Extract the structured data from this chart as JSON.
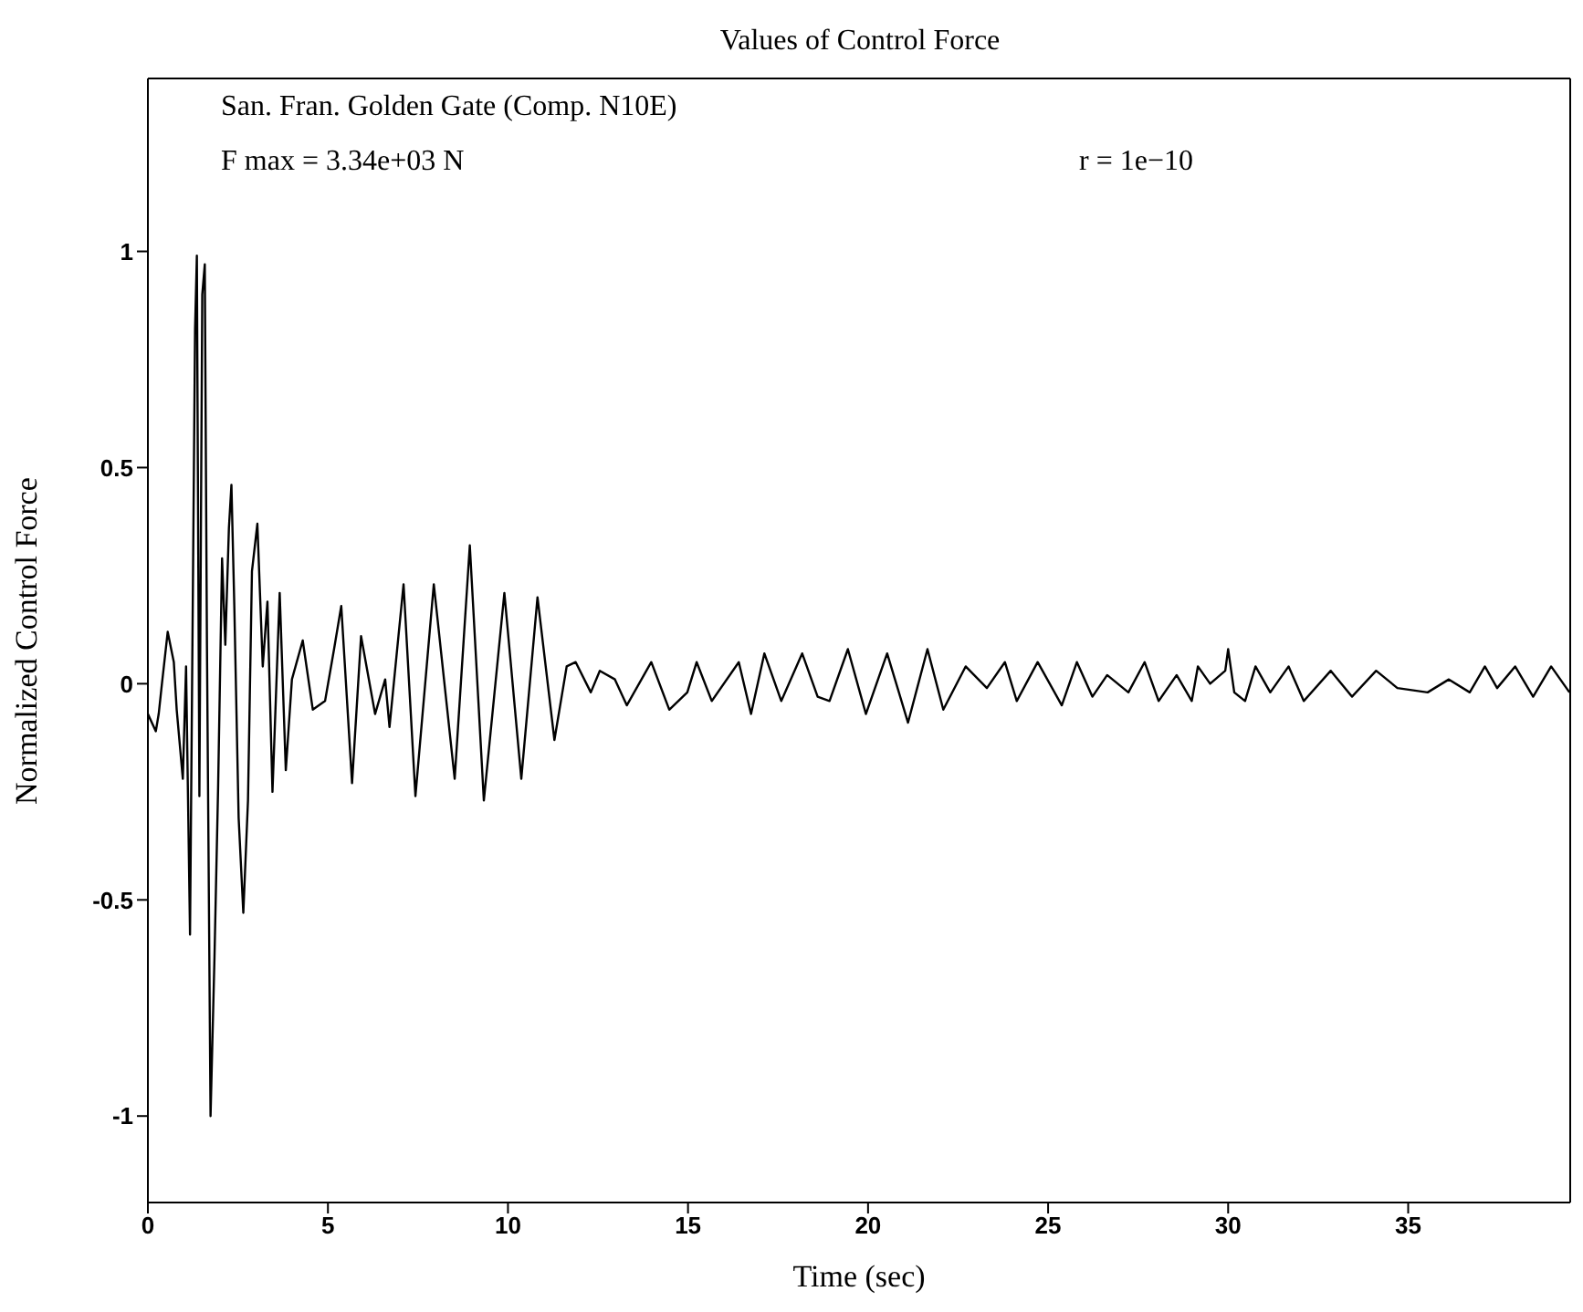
{
  "chart_data": {
    "type": "line",
    "title": "Values of Control Force",
    "xlabel": "Time (sec)",
    "ylabel": "Normalized Control Force",
    "annotations": [
      "San. Fran. Golden Gate (Comp. N10E)",
      "F max = 3.34e+03 N",
      "r = 1e−10"
    ],
    "xlim": [
      0,
      39.5
    ],
    "xticks": [
      0,
      5,
      10,
      15,
      20,
      25,
      30,
      35
    ],
    "ylim": [
      -1.2,
      1.4
    ],
    "yticks": [
      -1,
      -0.5,
      0,
      0.5,
      1
    ],
    "marker": "none",
    "line_style": "solid",
    "series": [
      {
        "color": "#000000",
        "x": [
          0,
          0.22,
          0.3,
          0.39,
          0.55,
          0.72,
          0.8,
          0.97,
          1.06,
          1.17,
          1.31,
          1.36,
          1.43,
          1.51,
          1.58,
          1.64,
          1.74,
          1.85,
          1.95,
          2.06,
          2.15,
          2.25,
          2.32,
          2.4,
          2.52,
          2.65,
          2.78,
          2.89,
          3.04,
          3.19,
          3.32,
          3.46,
          3.66,
          3.83,
          4.0,
          4.3,
          4.58,
          4.92,
          5.17,
          5.37,
          5.67,
          5.92,
          6.31,
          6.59,
          6.71,
          7.1,
          7.43,
          7.94,
          8.52,
          8.94,
          9.33,
          9.9,
          10.37,
          10.82,
          11.29,
          11.63,
          11.88,
          12.3,
          12.55,
          12.97,
          13.3,
          13.98,
          14.48,
          14.98,
          15.24,
          15.66,
          16.41,
          16.75,
          17.12,
          17.59,
          18.17,
          18.6,
          18.93,
          19.44,
          19.94,
          20.53,
          21.11,
          21.65,
          22.09,
          22.71,
          23.3,
          23.8,
          24.13,
          24.71,
          25.38,
          25.8,
          26.23,
          26.64,
          27.23,
          27.68,
          28.07,
          28.57,
          28.99,
          29.16,
          29.5,
          29.92,
          30.0,
          30.17,
          30.47,
          30.76,
          31.17,
          31.68,
          32.1,
          32.85,
          33.44,
          34.11,
          34.7,
          35.54,
          36.13,
          36.71,
          37.13,
          37.47,
          37.97,
          38.47,
          38.97,
          39.48
        ],
        "values": [
          -0.07,
          -0.11,
          -0.07,
          0,
          0.12,
          0.05,
          -0.06,
          -0.22,
          0.04,
          -0.58,
          0.82,
          0.99,
          -0.26,
          0.9,
          0.97,
          0.09,
          -1.0,
          -0.63,
          -0.24,
          0.29,
          0.09,
          0.36,
          0.46,
          0.18,
          -0.31,
          -0.53,
          -0.27,
          0.26,
          0.37,
          0.04,
          0.19,
          -0.25,
          0.21,
          -0.2,
          0.01,
          0.1,
          -0.06,
          -0.04,
          0.08,
          0.18,
          -0.23,
          0.11,
          -0.07,
          0.01,
          -0.1,
          0.23,
          -0.26,
          0.23,
          -0.22,
          0.32,
          -0.27,
          0.21,
          -0.22,
          0.2,
          -0.13,
          0.04,
          0.05,
          -0.02,
          0.03,
          0.01,
          -0.05,
          0.05,
          -0.06,
          -0.02,
          0.05,
          -0.04,
          0.05,
          -0.07,
          0.07,
          -0.04,
          0.07,
          -0.03,
          -0.04,
          0.08,
          -0.07,
          0.07,
          -0.09,
          0.08,
          -0.06,
          0.04,
          -0.01,
          0.05,
          -0.04,
          0.05,
          -0.05,
          0.05,
          -0.03,
          0.02,
          -0.02,
          0.05,
          -0.04,
          0.02,
          -0.04,
          0.04,
          0,
          0.03,
          0.08,
          -0.02,
          -0.04,
          0.04,
          -0.02,
          0.04,
          -0.04,
          0.03,
          -0.03,
          0.03,
          -0.01,
          -0.02,
          0.01,
          -0.02,
          0.04,
          -0.01,
          0.04,
          -0.03,
          0.04,
          -0.02
        ]
      }
    ]
  }
}
